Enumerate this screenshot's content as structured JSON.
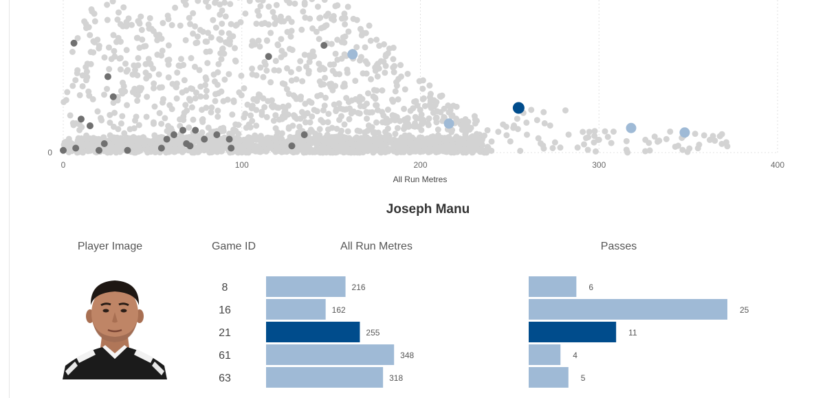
{
  "chart_data": [
    {
      "type": "scatter",
      "xlabel": "All Run Metres",
      "ylabel": "",
      "xlim": [
        0,
        400
      ],
      "x_ticks": [
        0,
        100,
        200,
        300,
        400
      ],
      "y_ticks": [
        0
      ],
      "grid": true,
      "legend": "none",
      "colors": {
        "other": "#d3d3d3",
        "player_other": "#707070",
        "highlight_light": "#9fbad6",
        "highlight_dark": "#004c8c"
      },
      "series": [
        {
          "role": "player-games-dark",
          "points": [
            [
              6,
              24.5
            ],
            [
              25,
              17
            ],
            [
              28,
              12.5
            ],
            [
              115,
              21.5
            ],
            [
              146,
              24
            ],
            [
              10,
              7.5
            ],
            [
              15,
              6
            ],
            [
              0,
              0.5
            ],
            [
              7,
              1
            ],
            [
              20,
              0.5
            ],
            [
              23,
              2
            ],
            [
              36,
              0.5
            ],
            [
              55,
              1
            ],
            [
              58,
              3
            ],
            [
              62,
              4
            ],
            [
              67,
              5
            ],
            [
              69,
              2
            ],
            [
              71,
              1.5
            ],
            [
              74,
              5
            ],
            [
              79,
              3
            ],
            [
              86,
              4
            ],
            [
              93,
              3
            ],
            [
              94,
              1
            ],
            [
              128,
              1.5
            ],
            [
              135,
              4
            ]
          ]
        },
        {
          "role": "player-games-light",
          "points": [
            [
              162,
              22
            ],
            [
              216,
              6.5
            ],
            [
              318,
              5.5
            ],
            [
              348,
              4.5
            ]
          ]
        },
        {
          "role": "selected-game",
          "points": [
            [
              255,
              10
            ]
          ]
        }
      ]
    },
    {
      "type": "bar",
      "orientation": "horizontal",
      "title": "Joseph Manu",
      "columns": [
        "Player Image",
        "Game ID",
        "All Run Metres",
        "Passes"
      ],
      "categories": [
        "8",
        "16",
        "21",
        "61",
        "63"
      ],
      "selected": "21",
      "series": [
        {
          "name": "All Run Metres",
          "values": [
            216,
            162,
            255,
            348,
            318
          ]
        },
        {
          "name": "Passes",
          "values": [
            6,
            25,
            11,
            4,
            5
          ]
        }
      ]
    }
  ]
}
